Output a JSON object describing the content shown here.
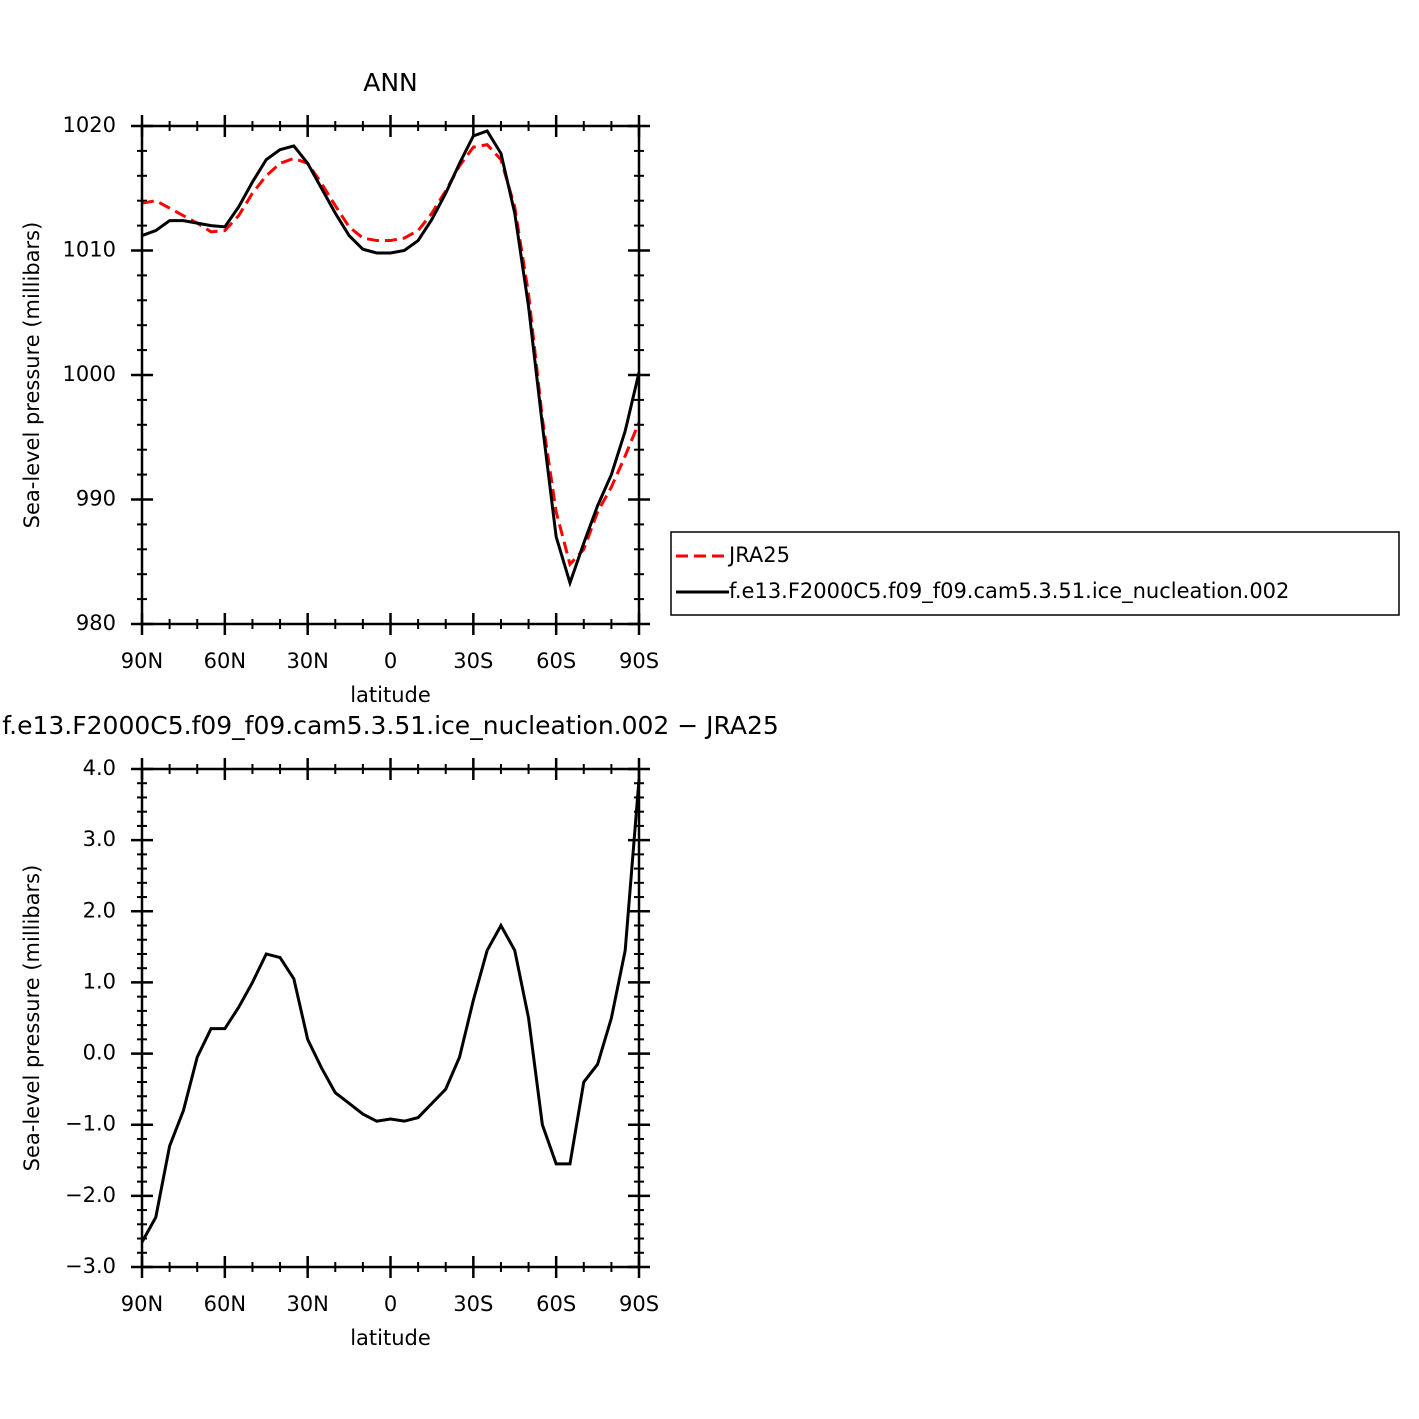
{
  "chart_data": [
    {
      "type": "line",
      "title": "ANN",
      "x_label": "latitude",
      "y_label": "Sea-level pressure (millibars)",
      "x": [
        90,
        85,
        80,
        75,
        70,
        65,
        60,
        55,
        50,
        45,
        40,
        35,
        30,
        25,
        20,
        15,
        10,
        5,
        0,
        -5,
        -10,
        -15,
        -20,
        -25,
        -30,
        -35,
        -40,
        -45,
        -50,
        -55,
        -60,
        -65,
        -70,
        -75,
        -80,
        -85,
        -90
      ],
      "series": [
        {
          "name": "JRA25",
          "color": "#ff0000",
          "dash": "dashed",
          "values": [
            1013.8,
            1014.0,
            1013.4,
            1012.8,
            1012.2,
            1011.5,
            1011.6,
            1012.8,
            1014.6,
            1016.0,
            1017.0,
            1017.4,
            1017.0,
            1015.4,
            1013.6,
            1011.9,
            1011.0,
            1010.8,
            1010.8,
            1011.0,
            1011.6,
            1013.0,
            1014.8,
            1016.8,
            1018.3,
            1018.5,
            1017.3,
            1013.5,
            1006.5,
            996.5,
            989.0,
            984.8,
            986.0,
            989.0,
            991.0,
            993.5,
            996.2
          ]
        },
        {
          "name": "f.e13.F2000C5.f09_f09.cam5.3.51.ice_nucleation.002",
          "color": "#000000",
          "dash": "solid",
          "values": [
            1011.2,
            1011.6,
            1012.4,
            1012.4,
            1012.2,
            1012.0,
            1011.9,
            1013.5,
            1015.5,
            1017.3,
            1018.1,
            1018.4,
            1017.0,
            1015.0,
            1013.0,
            1011.2,
            1010.1,
            1009.8,
            1009.8,
            1010.0,
            1010.8,
            1012.5,
            1014.6,
            1017.0,
            1019.2,
            1019.6,
            1017.8,
            1013.0,
            1005.5,
            996.0,
            987.0,
            983.3,
            986.5,
            989.5,
            992.0,
            995.5,
            1000.2
          ]
        }
      ],
      "xlim": [
        90,
        -90
      ],
      "xticks": [
        {
          "value": 90,
          "label": "90N"
        },
        {
          "value": 60,
          "label": "60N"
        },
        {
          "value": 30,
          "label": "30N"
        },
        0,
        {
          "value": -30,
          "label": "30S"
        },
        {
          "value": -60,
          "label": "60S"
        },
        {
          "value": -90,
          "label": "90S"
        }
      ],
      "ylim": [
        980,
        1020
      ],
      "yticks": [
        980,
        990,
        1000,
        1010,
        1020
      ],
      "legend": "right",
      "grid": false
    },
    {
      "type": "line",
      "title": "f.e13.F2000C5.f09_f09.cam5.3.51.ice_nucleation.002 − JRA25",
      "x_label": "latitude",
      "y_label": "Sea-level pressure (millibars)",
      "x": [
        90,
        85,
        80,
        75,
        70,
        65,
        60,
        55,
        50,
        45,
        40,
        35,
        30,
        25,
        20,
        15,
        10,
        5,
        0,
        -5,
        -10,
        -15,
        -20,
        -25,
        -30,
        -35,
        -40,
        -45,
        -50,
        -55,
        -60,
        -65,
        -70,
        -75,
        -80,
        -85,
        -90
      ],
      "series": [
        {
          "color": "#000000",
          "dash": "solid",
          "values": [
            -2.65,
            -2.3,
            -1.3,
            -0.8,
            -0.05,
            0.35,
            0.35,
            0.65,
            1.0,
            1.4,
            1.35,
            1.05,
            0.2,
            -0.2,
            -0.55,
            -0.7,
            -0.85,
            -0.95,
            -0.92,
            -0.95,
            -0.9,
            -0.7,
            -0.5,
            -0.05,
            0.75,
            1.45,
            1.8,
            1.45,
            0.5,
            -1.0,
            -1.55,
            -1.55,
            -0.4,
            -0.15,
            0.5,
            1.45,
            3.85
          ]
        }
      ],
      "xlim": [
        90,
        -90
      ],
      "xticks": [
        {
          "value": 90,
          "label": "90N"
        },
        {
          "value": 60,
          "label": "60N"
        },
        {
          "value": 30,
          "label": "30N"
        },
        0,
        {
          "value": -30,
          "label": "30S"
        },
        {
          "value": -60,
          "label": "60S"
        },
        {
          "value": -90,
          "label": "90S"
        }
      ],
      "ylim": [
        -3,
        4
      ],
      "yticks": [
        {
          "value": -3,
          "label": "−3.0"
        },
        {
          "value": -2,
          "label": "−2.0"
        },
        {
          "value": -1,
          "label": "−1.0"
        },
        {
          "value": 0,
          "label": "0.0"
        },
        {
          "value": 1,
          "label": "1.0"
        },
        {
          "value": 2,
          "label": "2.0"
        },
        {
          "value": 3,
          "label": "3.0"
        },
        {
          "value": 4,
          "label": "4.0"
        }
      ],
      "grid": false
    }
  ]
}
